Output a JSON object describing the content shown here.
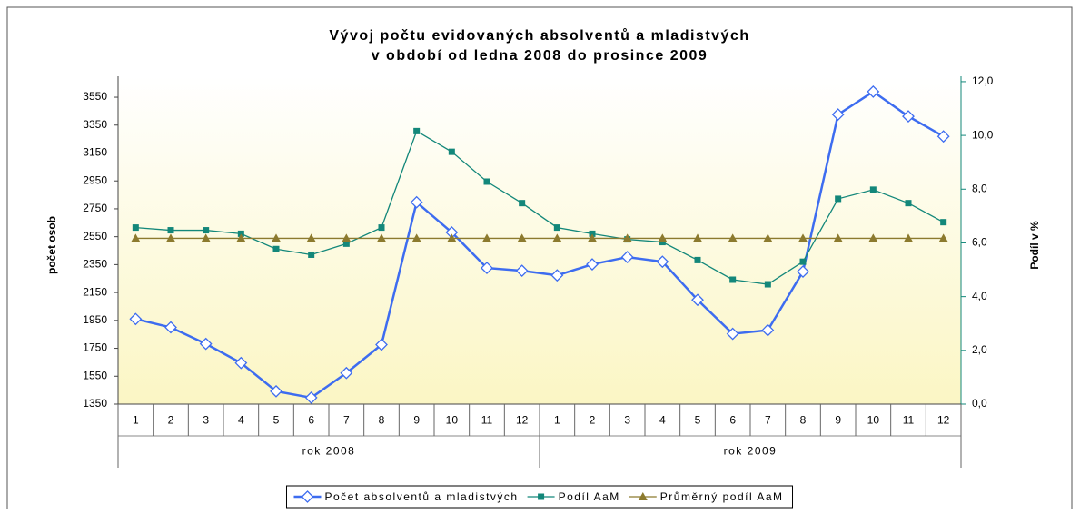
{
  "chart_data": {
    "type": "line",
    "title": [
      "Vývoj počtu evidovaných absolventů a mladistvých",
      "v období od ledna 2008 do prosince 2009"
    ],
    "categories": [
      "1",
      "2",
      "3",
      "4",
      "5",
      "6",
      "7",
      "8",
      "9",
      "10",
      "11",
      "12",
      "1",
      "2",
      "3",
      "4",
      "5",
      "6",
      "7",
      "8",
      "9",
      "10",
      "11",
      "12"
    ],
    "category_groups": [
      "rok 2008",
      "rok 2009"
    ],
    "y_label": "počet osob",
    "y2_label": "Podíl v %",
    "ylim": [
      1350,
      3700
    ],
    "yticks": [
      1350,
      1550,
      1750,
      1950,
      2150,
      2350,
      2550,
      2750,
      2950,
      3150,
      3350,
      3550
    ],
    "y2lim": [
      0,
      12.2
    ],
    "y2ticks": [
      {
        "value": 0,
        "label": "0,0"
      },
      {
        "value": 2,
        "label": "2,0"
      },
      {
        "value": 4,
        "label": "4,0"
      },
      {
        "value": 6,
        "label": "6,0"
      },
      {
        "value": 8,
        "label": "8,0"
      },
      {
        "value": 10,
        "label": "10,0"
      },
      {
        "value": 12,
        "label": "12,0"
      }
    ],
    "grid": false,
    "legend": "bottom",
    "series": [
      {
        "name": "Počet absolventů a mladistvých",
        "color": "#3d6cf0",
        "marker": "diamond",
        "values": [
          1960,
          1900,
          1782,
          1645,
          1442,
          1396,
          1573,
          1776,
          2797,
          2581,
          2326,
          2306,
          2273,
          2352,
          2404,
          2371,
          2097,
          1854,
          1880,
          2300,
          3426,
          3590,
          3413,
          3269
        ]
      },
      {
        "name": "Podíl AaM",
        "color": "#13877a",
        "marker": "square",
        "axis": "y2",
        "values": [
          6.57,
          6.47,
          6.47,
          6.34,
          5.77,
          5.56,
          5.97,
          6.57,
          10.16,
          9.39,
          8.28,
          7.48,
          6.57,
          6.34,
          6.13,
          6.03,
          5.36,
          4.63,
          4.46,
          5.3,
          7.64,
          7.98,
          7.48,
          6.77
        ]
      },
      {
        "name": "Průměrný podíl AaM",
        "color": "#8c7a2e",
        "marker": "triangle",
        "axis": "y2",
        "values": [
          6.17,
          6.17,
          6.17,
          6.17,
          6.17,
          6.17,
          6.17,
          6.17,
          6.17,
          6.17,
          6.17,
          6.17,
          6.17,
          6.17,
          6.17,
          6.17,
          6.17,
          6.17,
          6.17,
          6.17,
          6.17,
          6.17,
          6.17,
          6.17
        ]
      }
    ]
  }
}
